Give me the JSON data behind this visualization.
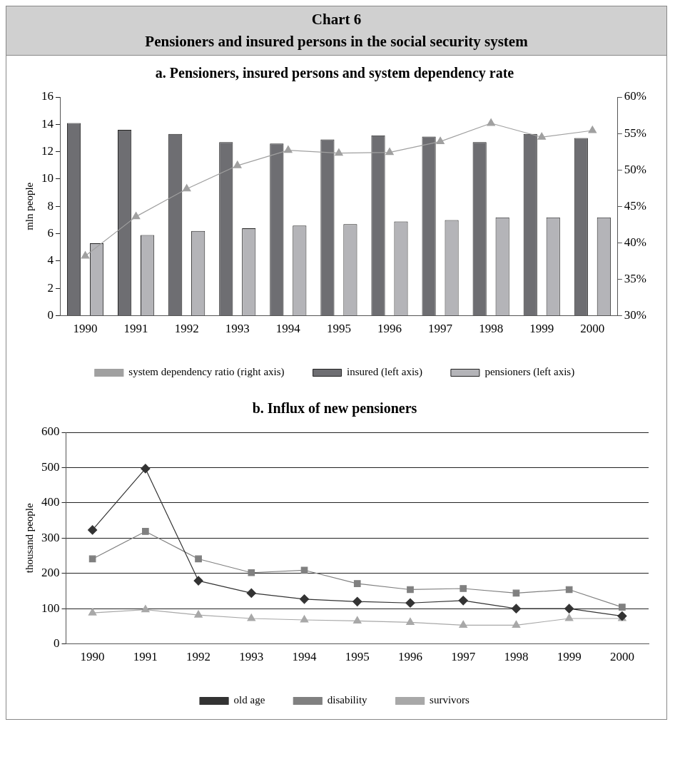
{
  "chart_data": [
    {
      "type": "other",
      "title": "Chart 6",
      "subtitle": "Pensioners and insured persons in the social security system"
    },
    {
      "type": "bar",
      "title": "a. Pensioners, insured persons and system dependency rate",
      "categories": [
        "1990",
        "1991",
        "1992",
        "1993",
        "1994",
        "1995",
        "1996",
        "1997",
        "1998",
        "1999",
        "2000"
      ],
      "ylabel": "mln people",
      "ylim": [
        0,
        16
      ],
      "yticks": [
        0,
        2,
        4,
        6,
        8,
        10,
        12,
        14,
        16
      ],
      "y2lim": [
        30,
        60
      ],
      "y2ticks": [
        {
          "value": 30,
          "label": "30%"
        },
        {
          "value": 35,
          "label": "35%"
        },
        {
          "value": 40,
          "label": "40%"
        },
        {
          "value": 45,
          "label": "45%"
        },
        {
          "value": 50,
          "label": "50%"
        },
        {
          "value": 55,
          "label": "55%"
        },
        {
          "value": 60,
          "label": "60%"
        }
      ],
      "legend": "bottom",
      "grid": false,
      "series": [
        {
          "name": "insured (left axis)",
          "color": "#6e6e72",
          "values": [
            14.1,
            13.6,
            13.3,
            12.7,
            12.6,
            12.9,
            13.2,
            13.1,
            12.7,
            13.3,
            13.0
          ]
        },
        {
          "name": "pensioners (left axis)",
          "color": "#b4b4b8",
          "values": [
            5.3,
            5.9,
            6.2,
            6.4,
            6.6,
            6.7,
            6.9,
            7.0,
            7.2,
            7.2,
            7.2
          ]
        },
        {
          "name": "system dependency ratio (right axis)",
          "type": "line",
          "axis": "y2",
          "marker": "triangle",
          "color": "#a0a0a0",
          "values": [
            38.2,
            43.6,
            47.4,
            50.6,
            52.7,
            52.3,
            52.4,
            53.9,
            56.4,
            54.5,
            55.4
          ]
        }
      ]
    },
    {
      "type": "line",
      "title": "b. Influx of new pensioners",
      "categories": [
        "1990",
        "1991",
        "1992",
        "1993",
        "1994",
        "1995",
        "1996",
        "1997",
        "1998",
        "1999",
        "2000"
      ],
      "ylabel": "thousand people",
      "ylim": [
        0,
        600
      ],
      "yticks": [
        0,
        100,
        200,
        300,
        400,
        500,
        600
      ],
      "legend": "bottom",
      "grid": "y",
      "series": [
        {
          "name": "old age",
          "marker": "diamond",
          "color": "#333333",
          "values": [
            323,
            497,
            179,
            144,
            127,
            120,
            116,
            123,
            100,
            100,
            79
          ]
        },
        {
          "name": "disability",
          "marker": "square",
          "color": "#808080",
          "values": [
            241,
            319,
            241,
            202,
            209,
            171,
            154,
            157,
            144,
            154,
            104
          ]
        },
        {
          "name": "survivors",
          "marker": "triangle",
          "color": "#a8a8a8",
          "values": [
            88,
            97,
            82,
            72,
            68,
            65,
            61,
            53,
            53,
            72,
            72
          ]
        }
      ]
    }
  ]
}
